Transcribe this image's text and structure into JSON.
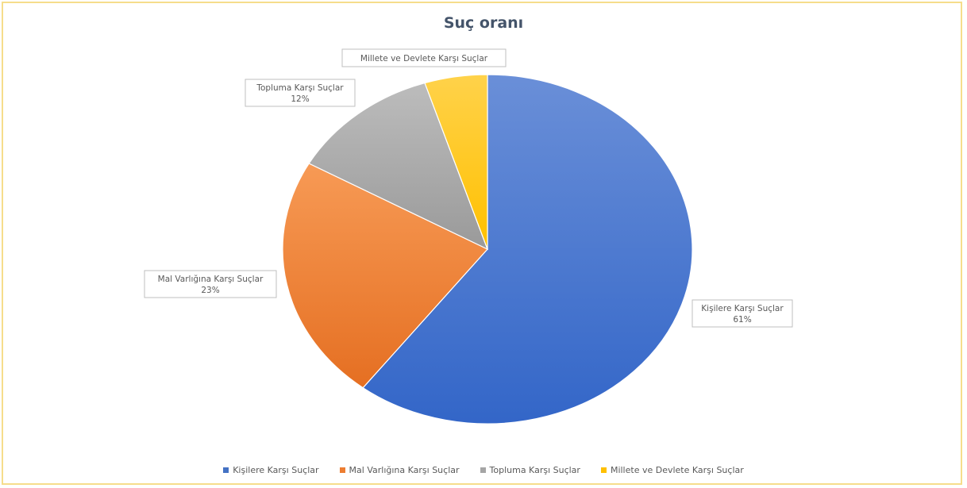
{
  "chart_data": {
    "type": "pie",
    "title": "Suç oranı",
    "slices": [
      {
        "name": "Kişilere Karşı Suçlar",
        "value": 61,
        "label": "61%",
        "color": "#4472c4"
      },
      {
        "name": "Mal Varlığına Karşı Suçlar",
        "value": 23,
        "label": "23%",
        "color": "#ed7d31"
      },
      {
        "name": "Topluma Karşı Suçlar",
        "value": 12,
        "label": "12%",
        "color": "#a5a5a5"
      },
      {
        "name": "Millete ve Devlete Karşı Suçlar",
        "value": 5,
        "label": "",
        "color": "#ffc000"
      }
    ],
    "legend_position": "bottom"
  }
}
